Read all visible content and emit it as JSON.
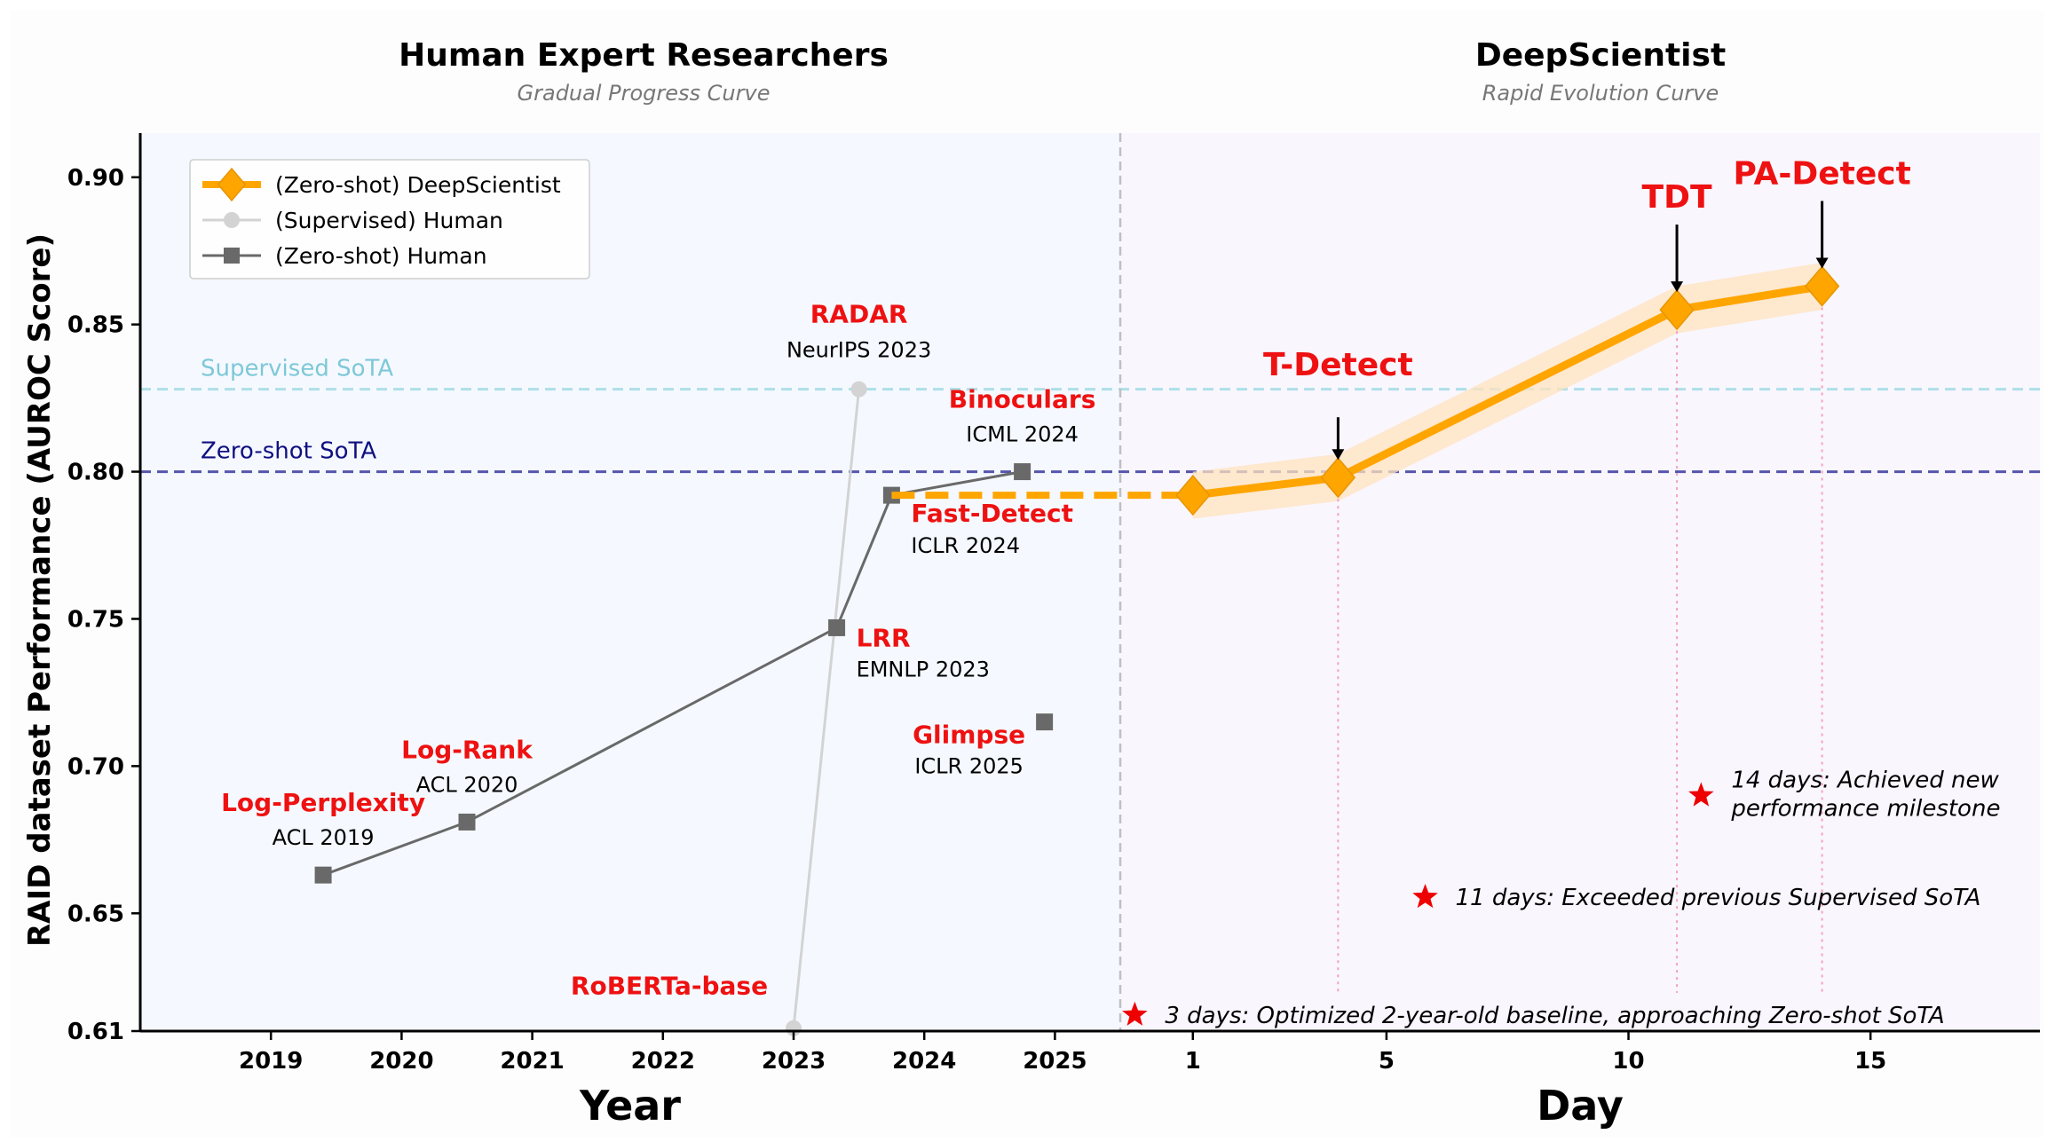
{
  "chart_data": {
    "type": "line",
    "ylabel": "RAID dataset Performance (AUROC Score)",
    "ylim": [
      0.61,
      0.915
    ],
    "yticks": [
      "0.61",
      "0.65",
      "0.70",
      "0.75",
      "0.80",
      "0.85",
      "0.90"
    ],
    "panels": {
      "left": {
        "title": "Human Expert Researchers",
        "subtitle": "Gradual Progress Curve",
        "xlabel": "Year",
        "xlim": [
          2018.0,
          2025.5
        ],
        "xticks": [
          "2019",
          "2020",
          "2021",
          "2022",
          "2023",
          "2024",
          "2025"
        ]
      },
      "right": {
        "title": "DeepScientist",
        "subtitle": "Rapid Evolution Curve",
        "xlabel": "Day",
        "xlim": [
          -0.5,
          18.5
        ],
        "xticks": [
          "1",
          "5",
          "10",
          "15"
        ]
      }
    },
    "reference_lines": [
      {
        "label": "Supervised SoTA",
        "y": 0.828,
        "color": "#a6dde6"
      },
      {
        "label": "Zero-shot SoTA",
        "y": 0.8,
        "color": "#000080"
      }
    ],
    "legend": {
      "position": "top-left",
      "entries": [
        {
          "label": "(Zero-shot) DeepScientist",
          "color": "#ffa500",
          "marker": "diamond"
        },
        {
          "label": "(Supervised) Human",
          "color": "#d3d3d3",
          "marker": "circle"
        },
        {
          "label": "(Zero-shot) Human",
          "color": "#696969",
          "marker": "square"
        }
      ]
    },
    "series": [
      {
        "name": "(Supervised) Human",
        "panel": "left",
        "points": [
          {
            "x": 2023.0,
            "y": 0.611,
            "method": "RoBERTa-base",
            "venue": ""
          },
          {
            "x": 2023.5,
            "y": 0.828,
            "method": "RADAR",
            "venue": "NeurIPS 2023"
          }
        ]
      },
      {
        "name": "(Zero-shot) Human",
        "panel": "left",
        "points": [
          {
            "x": 2019.4,
            "y": 0.663,
            "method": "Log-Perplexity",
            "venue": "ACL 2019"
          },
          {
            "x": 2020.5,
            "y": 0.681,
            "method": "Log-Rank",
            "venue": "ACL 2020"
          },
          {
            "x": 2023.33,
            "y": 0.747,
            "method": "LRR",
            "venue": "EMNLP 2023"
          },
          {
            "x": 2023.75,
            "y": 0.792,
            "method": "Fast-Detect",
            "venue": "ICLR 2024"
          },
          {
            "x": 2024.75,
            "y": 0.8,
            "method": "Binoculars",
            "venue": "ICML 2024"
          }
        ],
        "extra_points": [
          {
            "x": 2024.92,
            "y": 0.715,
            "method": "Glimpse",
            "venue": "ICLR 2025"
          }
        ]
      },
      {
        "name": "(Zero-shot) DeepScientist",
        "panel": "right",
        "points": [
          {
            "x": 1,
            "y": 0.792,
            "label": ""
          },
          {
            "x": 4,
            "y": 0.798,
            "label": "T-Detect"
          },
          {
            "x": 11,
            "y": 0.855,
            "label": "TDT"
          },
          {
            "x": 14,
            "y": 0.863,
            "label": "PA-Detect"
          }
        ]
      }
    ],
    "milestones": [
      {
        "x": -0.2,
        "y": 0.6155,
        "text": "3 days: Optimized 2-year-old baseline, approaching Zero-shot SoTA"
      },
      {
        "x": 5.8,
        "y": 0.6555,
        "text": "11 days: Exceeded previous Supervised SoTA"
      },
      {
        "x": 11.5,
        "y": 0.69,
        "text": "14 days: Achieved new performance milestone"
      }
    ],
    "colors": {
      "deepscientist": "#ffa500",
      "human_supervised": "#d3d3d3",
      "human_zeroshot": "#696969",
      "method_label": "#ee1111",
      "left_bg": "#f5f9ff",
      "right_bg": "#f9f6fe"
    }
  }
}
